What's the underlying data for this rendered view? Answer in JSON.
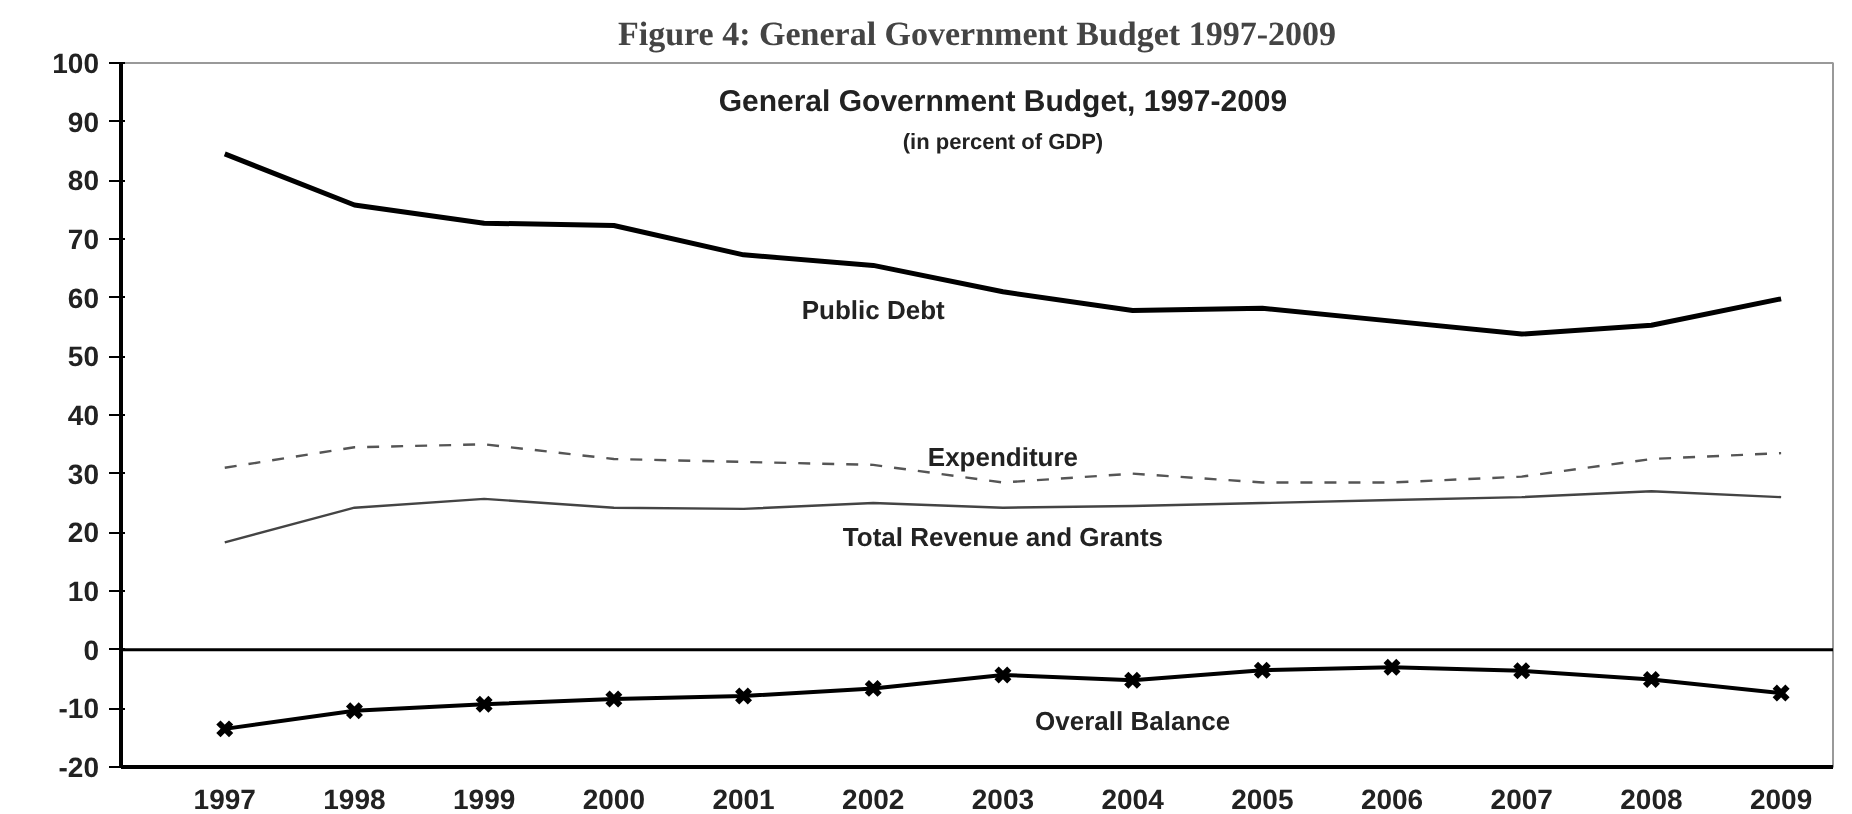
{
  "chart_data": {
    "type": "line",
    "title": "Figure 4: General Government Budget 1997-2009",
    "subtitle": "General Government Budget, 1997-2009",
    "annotations": [
      "(in percent of GDP)"
    ],
    "categories": [
      "1997",
      "1998",
      "1999",
      "2000",
      "2001",
      "2002",
      "2003",
      "2004",
      "2005",
      "2006",
      "2007",
      "2008",
      "2009"
    ],
    "ylim": [
      -20,
      100
    ],
    "yticks": [
      -20,
      -10,
      0,
      10,
      20,
      30,
      40,
      50,
      60,
      70,
      80,
      90,
      100
    ],
    "grid": false,
    "legend": false,
    "marker": "none",
    "ref_lines": [
      {
        "axis": "y",
        "value": 0,
        "label": null,
        "color": "#000000"
      }
    ],
    "series": [
      {
        "name": "Public Debt",
        "color": "#000000",
        "line_style": "solid",
        "values": [
          84.5,
          75.8,
          72.7,
          72.3,
          67.3,
          65.5,
          61,
          57.8,
          58.2,
          56,
          53.8,
          55.3,
          59.8
        ]
      },
      {
        "name": "Expenditure",
        "color": "#555555",
        "line_style": "dashed",
        "values": [
          31,
          34.5,
          35,
          32.5,
          32,
          31.5,
          28.5,
          30,
          28.5,
          28.5,
          29.5,
          32.5,
          33.5
        ]
      },
      {
        "name": "Total Revenue and Grants",
        "color": "#444444",
        "line_style": "solid",
        "values": [
          18.3,
          24.2,
          25.7,
          24.2,
          24,
          25,
          24.2,
          24.5,
          25,
          25.5,
          26,
          27,
          26
        ]
      },
      {
        "name": "Overall Balance",
        "color": "#000000",
        "line_style": "solid",
        "marker": "cross",
        "values": [
          -13.5,
          -10.4,
          -9.3,
          -8.4,
          -7.9,
          -6.6,
          -4.3,
          -5.2,
          -3.5,
          -3,
          -3.6,
          -5.1,
          -7.4
        ]
      }
    ]
  }
}
